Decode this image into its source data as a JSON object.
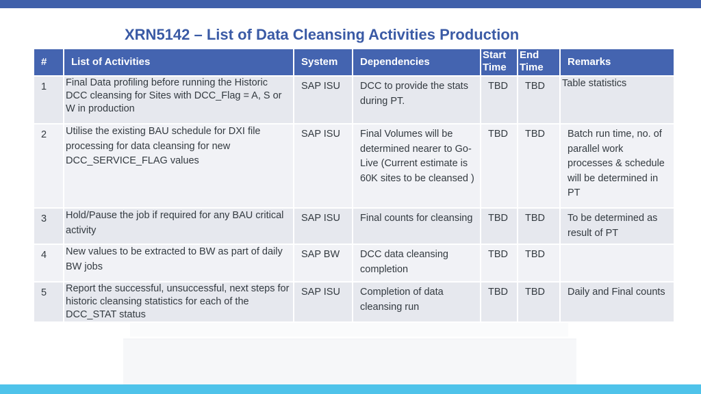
{
  "title": "XRN5142 – List of Data Cleansing Activities Production",
  "header": {
    "num": "#",
    "activities": "List of Activities",
    "system": "System",
    "dependencies": "Dependencies",
    "start_1": "Start",
    "start_2": "Time",
    "end_1": "End",
    "end_2": "Time",
    "remarks": "Remarks"
  },
  "rows": [
    {
      "num": "1",
      "activity": "Final Data profiling before running the Historic DCC cleansing for Sites with DCC_Flag = A, S or W in production",
      "system": "SAP ISU",
      "dependencies": "DCC to provide the stats during PT.",
      "start": "TBD",
      "end": "TBD",
      "remarks": "Table statistics"
    },
    {
      "num": "2",
      "activity": "Utilise the existing BAU schedule for DXI file processing for data cleansing for new DCC_SERVICE_FLAG values",
      "system": "SAP ISU",
      "dependencies": "Final Volumes will be determined nearer to Go-Live (Current estimate is 60K sites to be cleansed )",
      "start": "TBD",
      "end": "TBD",
      "remarks": "Batch run time, no. of parallel work processes & schedule will be determined in PT"
    },
    {
      "num": "3",
      "activity": "Hold/Pause the job if required for any BAU critical activity",
      "system": "SAP ISU",
      "dependencies": "Final counts for cleansing",
      "start": "TBD",
      "end": "TBD",
      "remarks": "To be determined as result of PT"
    },
    {
      "num": "4",
      "activity": "New values to be extracted to BW as part of daily BW jobs",
      "system": "SAP BW",
      "dependencies": "DCC data cleansing completion",
      "start": "TBD",
      "end": "TBD",
      "remarks": ""
    },
    {
      "num": "5",
      "activity": "Report the successful, unsuccessful, next steps for historic cleansing statistics for each of the DCC_STAT status",
      "system": "SAP ISU",
      "dependencies": "Completion of data cleansing run",
      "start": "TBD",
      "end": "TBD",
      "remarks": "Daily and Final counts"
    }
  ]
}
